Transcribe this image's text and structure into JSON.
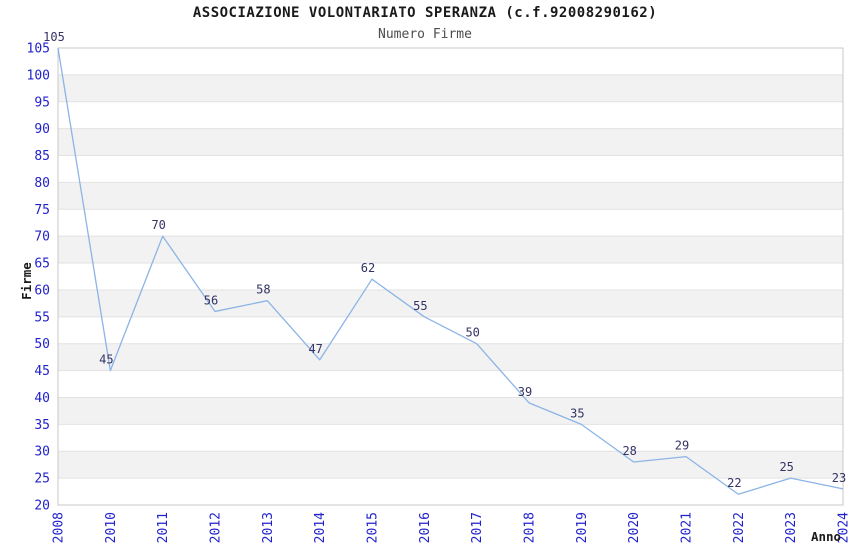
{
  "window": {
    "title": "ASSOCIAZIONE VOLONTARIATO SPERANZA (c.f.92008290162)",
    "subtitle": "Numero Firme"
  },
  "chart_data": {
    "type": "line",
    "title": "ASSOCIAZIONE VOLONTARIATO SPERANZA (c.f.92008290162)",
    "subtitle": "Numero Firme",
    "xlabel": "Anno",
    "ylabel": "Firme",
    "categories": [
      "2008",
      "2010",
      "2011",
      "2012",
      "2013",
      "2014",
      "2015",
      "2016",
      "2017",
      "2018",
      "2019",
      "2020",
      "2021",
      "2022",
      "2023",
      "2024"
    ],
    "series": [
      {
        "name": "Numero Firme",
        "values": [
          105,
          45,
          70,
          56,
          58,
          47,
          62,
          55,
          50,
          39,
          35,
          28,
          29,
          22,
          25,
          23
        ]
      }
    ],
    "data_labels": [
      "105",
      "45",
      "70",
      "56",
      "58",
      "47",
      "62",
      "55",
      "50",
      "39",
      "35",
      "28",
      "29",
      "22",
      "25",
      "23"
    ],
    "ylim": [
      20,
      105
    ],
    "ytick_step": 5,
    "xtick_rotation": 90,
    "grid": "horizontal alternating bands every 5 units",
    "legend": "none",
    "markers": "none",
    "colors": {
      "line": "#8cb4e6",
      "tick_labels": "#2222cc",
      "data_labels": "#333366",
      "band_fill": "#f2f2f2",
      "gridline": "#e2e2e2",
      "plot_border": "#c8c8c8",
      "title": "#1a1a1a",
      "subtitle": "#4d4d4d",
      "axis_titles": "#1a1a1a",
      "background": "#ffffff"
    }
  }
}
